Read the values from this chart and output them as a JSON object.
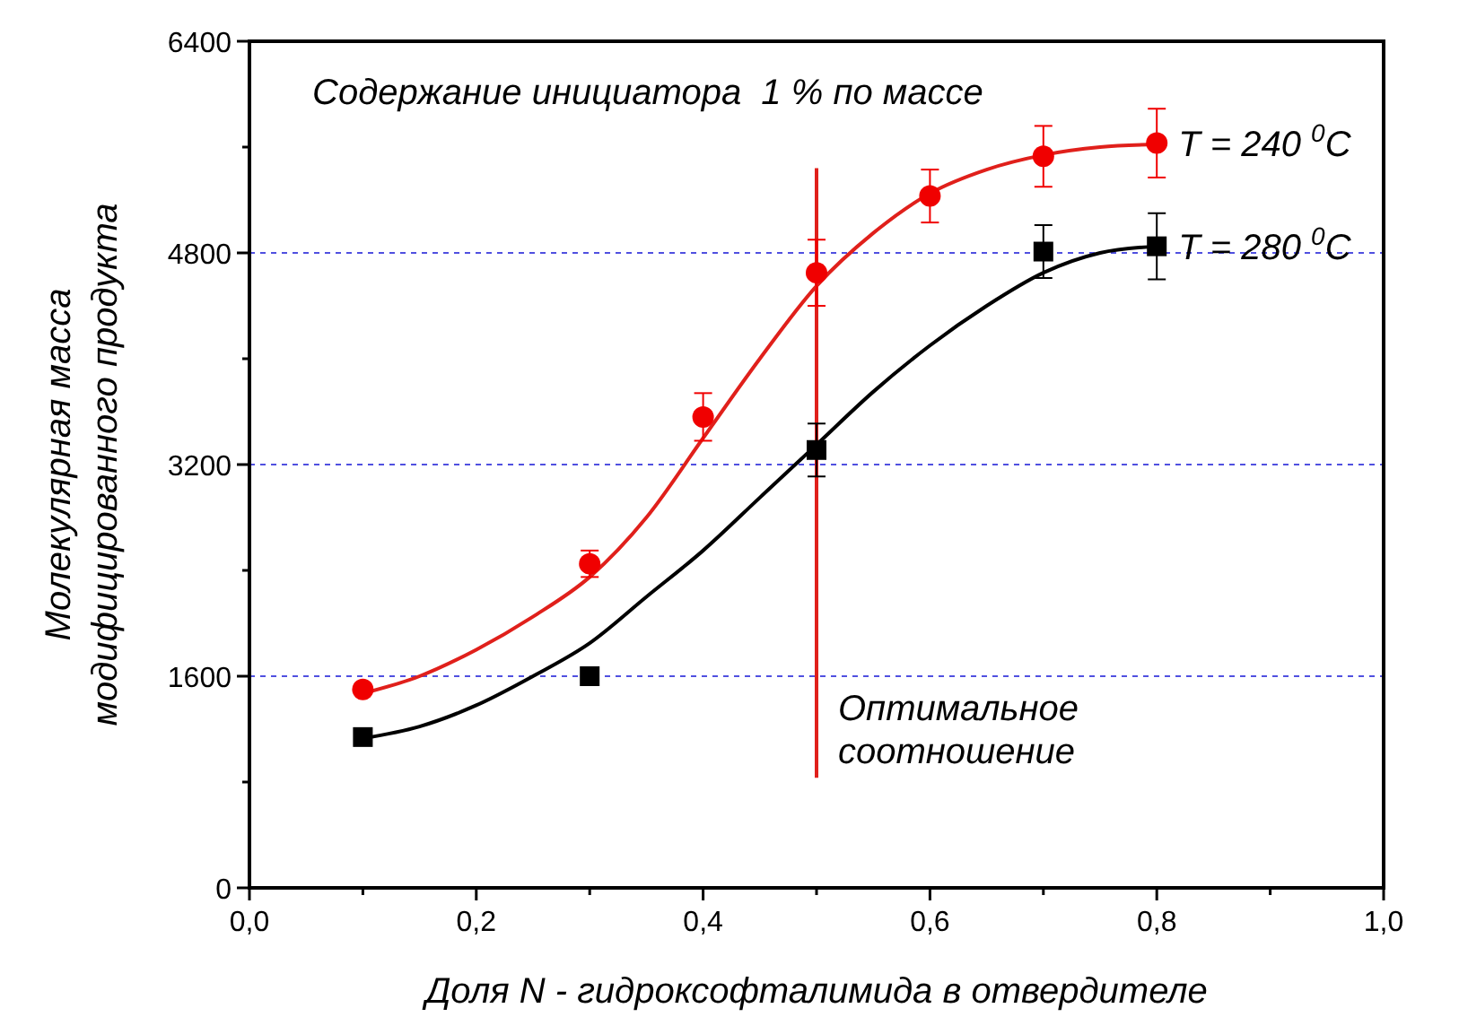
{
  "chart_data": {
    "type": "scatter",
    "xlabel": "Доля N - гидроксофталимида в отвердителе",
    "ylabel": "Молекулярная масса модифицированного продукта",
    "annotations": [
      "Содержание инициатора  1 % по массе"
    ],
    "xlim": [
      0,
      1
    ],
    "ylim": [
      0,
      6400
    ],
    "xticks": [
      {
        "value": 0,
        "label": "0,0"
      },
      {
        "value": 0.1,
        "label": null
      },
      {
        "value": 0.2,
        "label": "0,2"
      },
      {
        "value": 0.3,
        "label": null
      },
      {
        "value": 0.4,
        "label": "0,4"
      },
      {
        "value": 0.5,
        "label": null
      },
      {
        "value": 0.6,
        "label": "0,6"
      },
      {
        "value": 0.7,
        "label": null
      },
      {
        "value": 0.8,
        "label": "0,8"
      },
      {
        "value": 0.9,
        "label": null
      },
      {
        "value": 1,
        "label": "1,0"
      }
    ],
    "yticks": [
      0,
      {
        "value": 800,
        "label": null
      },
      1600,
      {
        "value": 2400,
        "label": null
      },
      3200,
      {
        "value": 4000,
        "label": null
      },
      4800,
      {
        "value": 5600,
        "label": null
      },
      6400
    ],
    "grid": "y",
    "ref_lines": [
      {
        "axis": "x",
        "value": 0.5,
        "label": "Оптимальное соотношение",
        "color": "#e0201b"
      }
    ],
    "series": [
      {
        "type": "line",
        "color": "#e0201b",
        "marker": "none",
        "x": [
          0.1,
          0.15,
          0.2,
          0.25,
          0.3,
          0.35,
          0.4,
          0.45,
          0.5,
          0.55,
          0.6,
          0.65,
          0.7,
          0.75,
          0.8
        ],
        "values": [
          1470,
          1600,
          1800,
          2050,
          2350,
          2800,
          3400,
          4000,
          4550,
          4950,
          5250,
          5430,
          5540,
          5600,
          5620
        ]
      },
      {
        "type": "line",
        "color": "#000000",
        "marker": "none",
        "x": [
          0.1,
          0.15,
          0.2,
          0.25,
          0.3,
          0.35,
          0.4,
          0.45,
          0.5,
          0.55,
          0.6,
          0.65,
          0.7,
          0.75,
          0.8
        ],
        "values": [
          1130,
          1220,
          1380,
          1600,
          1850,
          2200,
          2550,
          2950,
          3350,
          3750,
          4100,
          4400,
          4650,
          4800,
          4850
        ]
      },
      {
        "name": "T = 240 $^{0}$C",
        "color": "#f00000",
        "marker": "circle",
        "x": [
          0.1,
          0.3,
          0.4,
          0.5,
          0.6,
          0.7,
          0.8
        ],
        "values": [
          1500,
          2450,
          3560,
          4650,
          5230,
          5530,
          5630
        ],
        "errors": [
          null,
          100,
          180,
          250,
          200,
          230,
          260
        ]
      },
      {
        "name": "T = 280 $^{0}$C",
        "color": "#000000",
        "marker": "square",
        "x": [
          0.1,
          0.3,
          0.5,
          0.7,
          0.8
        ],
        "values": [
          1140,
          1600,
          3310,
          4810,
          4850
        ],
        "errors": [
          null,
          null,
          200,
          200,
          250
        ]
      }
    ]
  }
}
